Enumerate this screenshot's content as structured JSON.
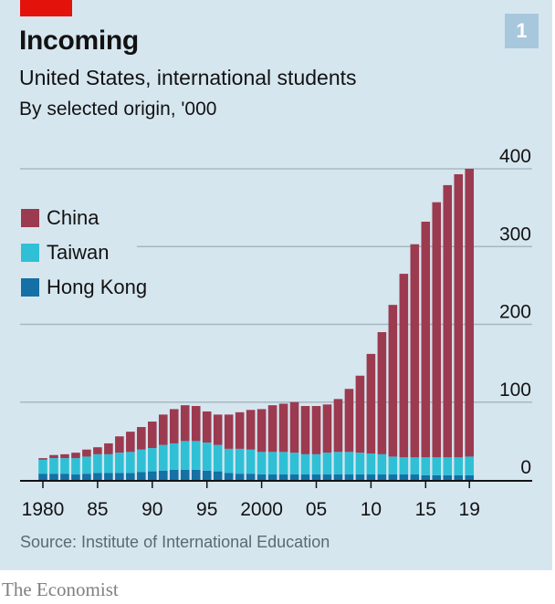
{
  "header": {
    "title": "Incoming",
    "subtitle": "United States, international students",
    "unit_note": "By selected origin, '000",
    "chart_number": "1"
  },
  "footer": {
    "source": "Source: Institute of International Education",
    "brand": "The Economist"
  },
  "colors": {
    "accent_red": "#e3120b",
    "china": "#9c3a50",
    "taiwan": "#2fc0d6",
    "hong_kong": "#1470a5",
    "background": "#d6e6ef"
  },
  "chart_data": {
    "type": "bar",
    "stacked": true,
    "title": "Incoming",
    "subtitle": "United States, international students",
    "ylabel": "By selected origin, '000",
    "xlabel": "",
    "ylim": [
      0,
      400
    ],
    "yticks": [
      0,
      100,
      200,
      300,
      400
    ],
    "grid": true,
    "legend_position": "top-left",
    "x": [
      1980,
      1981,
      1982,
      1983,
      1984,
      1985,
      1986,
      1987,
      1988,
      1989,
      1990,
      1991,
      1992,
      1993,
      1994,
      1995,
      1996,
      1997,
      1998,
      1999,
      2000,
      2001,
      2002,
      2003,
      2004,
      2005,
      2006,
      2007,
      2008,
      2009,
      2010,
      2011,
      2012,
      2013,
      2014,
      2015,
      2016,
      2017,
      2018,
      2019
    ],
    "xtick_labels": [
      {
        "year": 1980,
        "label": "1980"
      },
      {
        "year": 1985,
        "label": "85"
      },
      {
        "year": 1990,
        "label": "90"
      },
      {
        "year": 1995,
        "label": "95"
      },
      {
        "year": 2000,
        "label": "2000"
      },
      {
        "year": 2005,
        "label": "05"
      },
      {
        "year": 2010,
        "label": "10"
      },
      {
        "year": 2015,
        "label": "15"
      },
      {
        "year": 2019,
        "label": "19"
      }
    ],
    "series": [
      {
        "name": "Hong Kong",
        "color": "#1470a5",
        "values": [
          8,
          8,
          8,
          7,
          8,
          9,
          9,
          9,
          9,
          10,
          11,
          12,
          13,
          13,
          13,
          12,
          11,
          9,
          8,
          8,
          7,
          7,
          7,
          7,
          7,
          7,
          7,
          7,
          7,
          7,
          7,
          7,
          7,
          7,
          7,
          6,
          6,
          6,
          6,
          6
        ]
      },
      {
        "name": "Taiwan",
        "color": "#2fc0d6",
        "values": [
          18,
          20,
          20,
          21,
          22,
          24,
          24,
          26,
          27,
          29,
          30,
          33,
          34,
          37,
          37,
          36,
          34,
          31,
          32,
          31,
          29,
          29,
          29,
          28,
          26,
          26,
          28,
          29,
          29,
          28,
          27,
          26,
          23,
          22,
          22,
          23,
          23,
          23,
          23,
          24
        ]
      },
      {
        "name": "China",
        "color": "#9c3a50",
        "values": [
          2,
          4,
          5,
          7,
          9,
          9,
          14,
          21,
          26,
          29,
          34,
          39,
          44,
          46,
          45,
          40,
          39,
          44,
          47,
          51,
          55,
          60,
          62,
          65,
          62,
          62,
          62,
          68,
          81,
          99,
          128,
          157,
          195,
          236,
          274,
          303,
          328,
          350,
          364,
          370
        ]
      }
    ],
    "legend": [
      "China",
      "Taiwan",
      "Hong Kong"
    ]
  }
}
